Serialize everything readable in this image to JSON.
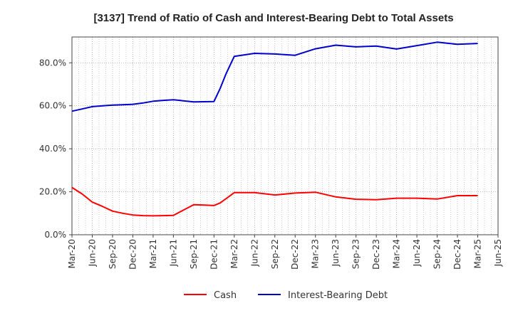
{
  "chart_data": {
    "type": "line",
    "title": "[3137]  Trend of Ratio of Cash and Interest-Bearing Debt to Total Assets",
    "xlabel": "",
    "ylabel": "",
    "ylim": [
      0,
      92
    ],
    "yticks": [
      0,
      20,
      40,
      60,
      80
    ],
    "ytick_labels": [
      "0.0%",
      "20.0%",
      "40.0%",
      "60.0%",
      "80.0%"
    ],
    "categories": [
      "Mar-20",
      "Jun-20",
      "Sep-20",
      "Dec-20",
      "Mar-21",
      "Jun-21",
      "Sep-21",
      "Dec-21",
      "Mar-22",
      "Jun-22",
      "Sep-22",
      "Dec-22",
      "Mar-23",
      "Jun-23",
      "Sep-23",
      "Dec-23",
      "Mar-24",
      "Jun-24",
      "Sep-24",
      "Dec-24",
      "Mar-25",
      "Jun-25"
    ],
    "grid": true,
    "legend_position": "bottom",
    "series": [
      {
        "name": "Cash",
        "color": "#ff0000",
        "x": [
          0,
          0.5,
          1,
          1.5,
          2,
          2.5,
          3,
          3.5,
          4,
          4.5,
          5,
          5.5,
          6,
          6.5,
          7,
          7.3,
          7.6,
          8,
          9,
          10,
          11,
          12,
          13,
          14,
          15,
          16,
          17,
          18,
          19,
          20
        ],
        "values": [
          22.0,
          19.0,
          15.2,
          13.2,
          11.0,
          10.0,
          9.2,
          8.9,
          8.8,
          8.9,
          9.0,
          11.5,
          14.0,
          13.8,
          13.6,
          14.8,
          16.8,
          19.6,
          19.6,
          18.5,
          19.4,
          19.8,
          17.6,
          16.5,
          16.3,
          17.0,
          17.0,
          16.6,
          18.2,
          18.2
        ]
      },
      {
        "name": "Interest-Bearing Debt",
        "color": "#0000cc",
        "x": [
          0,
          0.5,
          1,
          1.5,
          2,
          2.5,
          3,
          3.5,
          4,
          4.5,
          5,
          5.5,
          6,
          6.5,
          7,
          7.3,
          7.6,
          8,
          9,
          10,
          11,
          12,
          13,
          14,
          15,
          16,
          17,
          18,
          19,
          20
        ],
        "values": [
          57.5,
          58.5,
          59.6,
          60.0,
          60.3,
          60.5,
          60.7,
          61.3,
          62.1,
          62.5,
          62.8,
          62.3,
          61.8,
          61.9,
          62.0,
          68.0,
          75.0,
          83.0,
          84.4,
          84.1,
          83.5,
          86.5,
          88.2,
          87.4,
          87.8,
          86.4,
          88.0,
          89.6,
          88.6,
          89.0
        ]
      }
    ]
  }
}
